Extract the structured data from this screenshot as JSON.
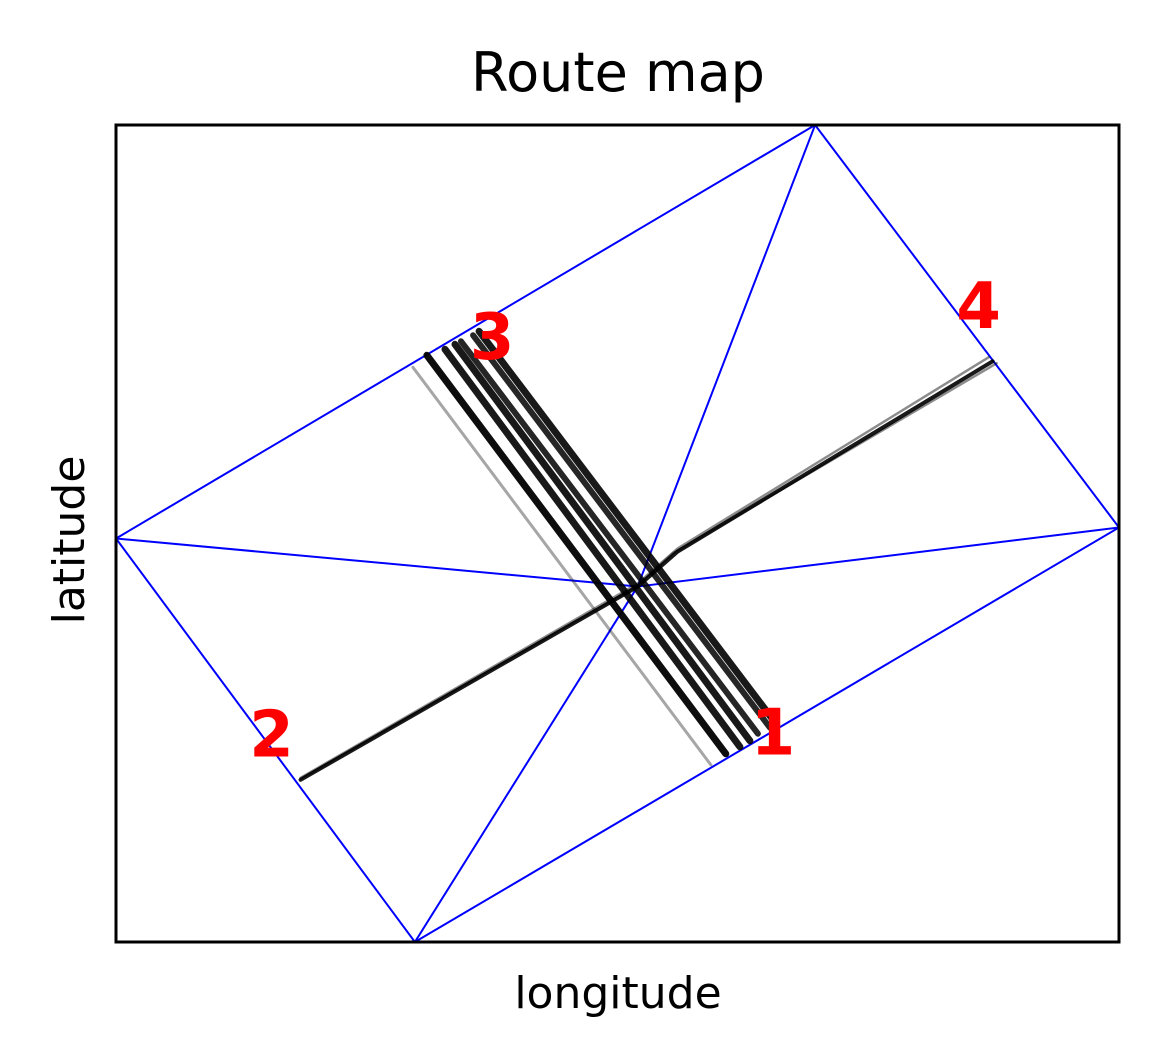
{
  "chart_data": {
    "type": "line",
    "title": "Route map",
    "xlabel": "longitude",
    "ylabel": "latitude",
    "xlim": [
      0,
      10
    ],
    "ylim": [
      0,
      8.16
    ],
    "grid": false,
    "ticks": "none",
    "colors": {
      "frame": "#000000",
      "mesh": "#0000ff",
      "routes": "#000000",
      "markers": "#ff0000"
    },
    "waypoints": [
      {
        "label": "1",
        "x": 6.55,
        "y": 2.05
      },
      {
        "label": "2",
        "x": 1.55,
        "y": 2.03
      },
      {
        "label": "3",
        "x": 3.75,
        "y": 6.0
      },
      {
        "label": "4",
        "x": 8.6,
        "y": 6.31
      }
    ],
    "mesh_nodes": [
      [
        0.0,
        4.03
      ],
      [
        2.98,
        0.0
      ],
      [
        6.97,
        8.16
      ],
      [
        10.0,
        4.14
      ],
      [
        5.2,
        3.55
      ],
      [
        8.74,
        5.8
      ],
      [
        1.84,
        1.62
      ],
      [
        3.1,
        5.87
      ],
      [
        6.15,
        1.91
      ]
    ],
    "mesh_edges": [
      [
        0,
        1
      ],
      [
        1,
        3
      ],
      [
        3,
        2
      ],
      [
        2,
        0
      ],
      [
        0,
        4
      ],
      [
        1,
        4
      ],
      [
        2,
        4
      ],
      [
        3,
        4
      ]
    ],
    "series": [
      {
        "values": [
          {
            "x": [
              3.1,
              6.08
            ],
            "y": [
              5.86,
              1.88
            ]
          },
          {
            "x": [
              3.28,
              6.22
            ],
            "y": [
              5.92,
              1.95
            ]
          },
          {
            "x": [
              3.38,
              6.32
            ],
            "y": [
              5.97,
              2.01
            ]
          },
          {
            "x": [
              3.44,
              6.4
            ],
            "y": [
              6.0,
              2.08
            ]
          },
          {
            "x": [
              3.56,
              6.52
            ],
            "y": [
              6.06,
              2.14
            ]
          },
          {
            "x": [
              3.62,
              6.58
            ],
            "y": [
              6.1,
              2.18
            ]
          },
          {
            "x": [
              2.96,
              5.93
            ],
            "y": [
              5.74,
              1.77
            ]
          }
        ]
      },
      {
        "values": [
          {
            "x": [
              1.84,
              5.2,
              5.6,
              8.74
            ],
            "y": [
              1.62,
              3.55,
              3.9,
              5.8
            ]
          },
          {
            "x": [
              1.84,
              5.2,
              5.6,
              8.7
            ],
            "y": [
              1.64,
              3.58,
              3.93,
              5.84
            ]
          },
          {
            "x": [
              1.84,
              5.2,
              5.55,
              8.78
            ],
            "y": [
              1.63,
              3.56,
              3.88,
              5.78
            ]
          }
        ]
      }
    ]
  }
}
